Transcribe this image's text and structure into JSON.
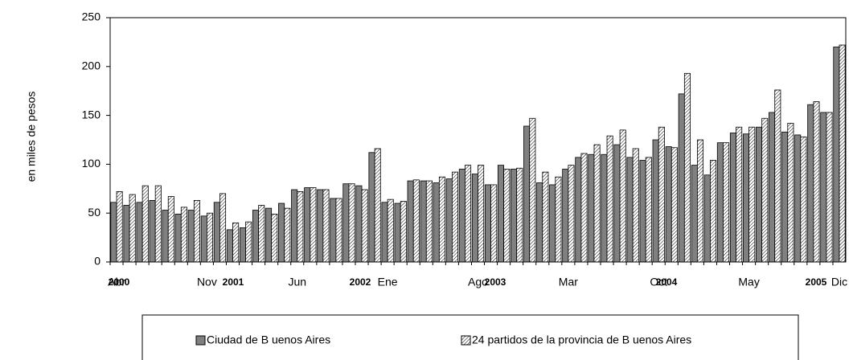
{
  "chart_data": {
    "type": "bar",
    "y_label": "en miles de pesos",
    "categories": [
      "Abr",
      null,
      null,
      null,
      null,
      null,
      null,
      "Nov",
      null,
      null,
      null,
      null,
      null,
      null,
      "Jun",
      null,
      null,
      null,
      null,
      null,
      null,
      "Ene",
      null,
      null,
      null,
      null,
      null,
      null,
      "Ago",
      null,
      null,
      null,
      null,
      null,
      null,
      "Mar",
      null,
      null,
      null,
      null,
      null,
      null,
      "Oct",
      null,
      null,
      null,
      null,
      null,
      null,
      "May",
      null,
      null,
      null,
      null,
      null,
      null,
      "Dic"
    ],
    "years": [
      "2000",
      "2001",
      "2002",
      "2003",
      "2004",
      "2005"
    ],
    "series": [
      {
        "name": "Ciudad de B uenos Aires",
        "color": "#808080",
        "hatch": false,
        "values": [
          61,
          58,
          61,
          63,
          53,
          49,
          53,
          47,
          61,
          33,
          35,
          53,
          55,
          60,
          74,
          76,
          74,
          65,
          80,
          78,
          112,
          61,
          60,
          83,
          83,
          81,
          85,
          95,
          90,
          79,
          99,
          95,
          139,
          81,
          79,
          95,
          107,
          110,
          110,
          120,
          107,
          104,
          125,
          118,
          172,
          99,
          89,
          122,
          132,
          131,
          138,
          153,
          133,
          130,
          161,
          153,
          220
        ]
      },
      {
        "name": "24 partidos de la provincia de B uenos Aires",
        "color": "#ffffff",
        "hatch": true,
        "values": [
          72,
          69,
          78,
          78,
          67,
          56,
          63,
          50,
          70,
          40,
          41,
          58,
          49,
          55,
          72,
          76,
          74,
          65,
          80,
          74,
          116,
          64,
          62,
          84,
          83,
          87,
          92,
          99,
          99,
          79,
          95,
          96,
          147,
          92,
          87,
          99,
          111,
          120,
          129,
          135,
          116,
          107,
          138,
          117,
          193,
          125,
          104,
          122,
          138,
          138,
          147,
          176,
          142,
          128,
          164,
          153,
          222
        ]
      }
    ],
    "ylim": [
      0,
      250
    ],
    "yticks": [
      0,
      50,
      100,
      150,
      200,
      250
    ],
    "grid": false
  }
}
